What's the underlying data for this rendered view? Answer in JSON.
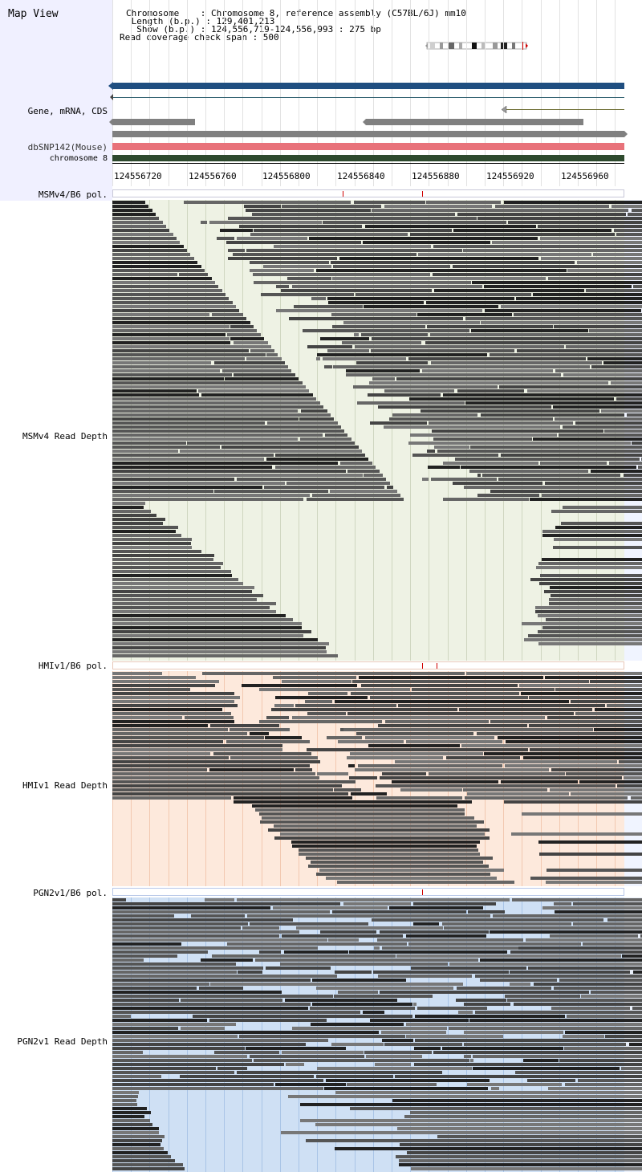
{
  "map_title": "Map View",
  "info": {
    "chromosome": "Chromosome    : Chromosome 8, reference assembly (C57BL/6J) mm10",
    "length": " Length (b.p.) : 129,401,213",
    "show": "  Show (b.p.) : 124,556,719-124,556,993 : 275 bp",
    "read_coverage": "Read coverage check span : 500"
  },
  "track_labels": {
    "gene": "Gene, mRNA, CDS",
    "dbsnp": "dbSNP142(Mouse)",
    "chromosome": "chromosome 8",
    "msm_pol": "MSMv4/B6 pol.",
    "msm_depth": "MSMv4 Read Depth",
    "hmi_pol": "HMIv1/B6 pol.",
    "hmi_depth": "HMIv1 Read Depth",
    "pgn_pol": "PGN2v1/B6 pol.",
    "pgn_depth": "PGN2v1 Read Depth"
  },
  "ticks": [
    "124556720",
    "124556760",
    "124556800",
    "124556840",
    "124556880",
    "124556920",
    "124556960"
  ],
  "colors": {
    "gene_bar": "#1f4e80",
    "dbsnp": "#e8727a",
    "chromosome_bar": "#2e4a2e",
    "gray_feature": "#808080",
    "msm_bg": "#eef2e4",
    "hmi_bg": "#fde9dc",
    "pgn_bg": "#cfe0f4",
    "left_bg": "#f0f0ff",
    "pol_mark": "#d00000"
  },
  "icons": [
    "chromosome-ideogram-icon",
    "arrowhead-left-icon"
  ]
}
